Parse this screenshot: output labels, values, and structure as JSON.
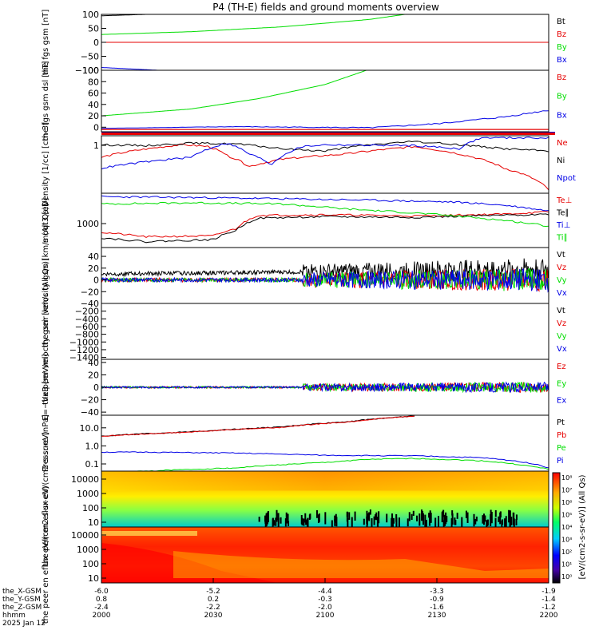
{
  "title": "P4 (TH-E) fields and ground moments overview",
  "date_label": "2025 Jan 12",
  "bottom_row_labels": [
    "the_X-GSM",
    "the_Y-GSM",
    "the_Z-GSM",
    "hhmm"
  ],
  "bottom_rows": [
    [
      "-6.0",
      "-5.2",
      "-4.4",
      "-3.3",
      "-1.9"
    ],
    [
      "0.8",
      "0.2",
      "-0.3",
      "-0.9",
      "-1.4"
    ],
    [
      "-2.4",
      "-2.2",
      "-2.0",
      "-1.6",
      "-1.2"
    ],
    [
      "2000",
      "2030",
      "2100",
      "2130",
      "2200"
    ]
  ],
  "colorbar_label": "[eV/(cm2-s-sr-eV)] (All Qs)",
  "colorbar_ticks": [
    "10⁸",
    "10⁷",
    "10⁶",
    "10⁵",
    "10⁴",
    "10³",
    "10²",
    "10¹",
    "10⁰"
  ],
  "colors": {
    "black": "#000000",
    "red": "#e60000",
    "green": "#00dd00",
    "blue": "#0000e6"
  },
  "chart_data": [
    {
      "type": "line",
      "ylabel": "the fgs gsm [nT]",
      "ylim": [
        -100,
        100
      ],
      "yticks": [
        "100",
        "50",
        "0",
        "−50",
        "−100"
      ],
      "legend": [
        {
          "name": "Bt",
          "color": "#000000"
        },
        {
          "name": "Bz",
          "color": "#e60000"
        },
        {
          "name": "By",
          "color": "#00dd00"
        },
        {
          "name": "Bx",
          "color": "#0000e6"
        }
      ],
      "series": [
        {
          "name": "Bt",
          "x": [
            0,
            0.1,
            0.15
          ],
          "y": [
            95,
            100,
            102
          ]
        },
        {
          "name": "Bz",
          "x": [
            0,
            1
          ],
          "y": [
            0,
            0
          ]
        },
        {
          "name": "By",
          "x": [
            0,
            0.2,
            0.4,
            0.6,
            0.7
          ],
          "y": [
            28,
            38,
            55,
            82,
            105
          ]
        },
        {
          "name": "Bx",
          "x": [
            0,
            0.1,
            0.18
          ],
          "y": [
            -90,
            -98,
            -104
          ]
        }
      ]
    },
    {
      "type": "line",
      "ylabel": "the fgs gsm dsl [nT]",
      "ylim": [
        -8,
        100
      ],
      "yticks": [
        "100",
        "80",
        "60",
        "40",
        "20",
        "0"
      ],
      "legend": [
        {
          "name": "Bz",
          "color": "#e60000"
        },
        {
          "name": "By",
          "color": "#00dd00"
        },
        {
          "name": "Bx",
          "color": "#0000e6"
        }
      ],
      "series": [
        {
          "name": "By",
          "x": [
            0,
            0.2,
            0.35,
            0.5,
            0.6
          ],
          "y": [
            20,
            32,
            50,
            75,
            102
          ]
        },
        {
          "name": "Bx",
          "x": [
            0,
            0.3,
            0.6,
            0.75,
            0.9,
            1
          ],
          "y": [
            -2,
            1,
            -1,
            6,
            18,
            30
          ]
        },
        {
          "name": "Bz",
          "x": [
            0,
            0.5,
            1
          ],
          "y": [
            -4,
            -4,
            -4
          ]
        }
      ]
    },
    {
      "type": "line",
      "ylabel": "Density [1/cc] [cm-3]",
      "yscale": "log",
      "yticks": [
        "1"
      ],
      "legend": [
        {
          "name": "Ne",
          "color": "#e60000"
        },
        {
          "name": "Ni",
          "color": "#000000"
        },
        {
          "name": "Npot",
          "color": "#0000e6"
        }
      ],
      "series": [
        {
          "name": "Ne",
          "x": [
            0,
            0.05,
            0.18,
            0.24,
            0.28,
            0.33,
            0.4,
            0.55,
            0.7,
            0.8,
            0.9,
            1
          ],
          "y": [
            0.4,
            0.55,
            0.9,
            0.8,
            0.45,
            0.22,
            0.35,
            0.5,
            0.8,
            0.5,
            0.2,
            0.05
          ]
        },
        {
          "name": "Ni",
          "x": [
            0,
            0.1,
            0.2,
            0.3,
            0.4,
            0.5,
            0.6,
            0.7,
            0.8,
            0.9,
            1
          ],
          "y": [
            0.9,
            0.85,
            1.0,
            0.95,
            0.7,
            0.6,
            0.9,
            1.1,
            0.9,
            0.7,
            0.6
          ]
        },
        {
          "name": "Npot",
          "x": [
            0,
            0.1,
            0.2,
            0.28,
            0.33,
            0.38,
            0.45,
            0.5,
            0.7,
            0.8,
            0.85,
            1
          ],
          "y": [
            0.2,
            0.3,
            0.4,
            1.0,
            0.5,
            0.25,
            0.8,
            0.9,
            0.85,
            0.7,
            1.4,
            1.4
          ]
        }
      ]
    },
    {
      "type": "line",
      "ylabel": "moqt3 [eV]",
      "yscale": "log",
      "yticks": [
        "1000"
      ],
      "legend": [
        {
          "name": "Te⊥",
          "color": "#e60000"
        },
        {
          "name": "Te∥",
          "color": "#000000"
        },
        {
          "name": "Ti⊥",
          "color": "#0000e6"
        },
        {
          "name": "Ti∥",
          "color": "#00dd00"
        }
      ],
      "series": [
        {
          "name": "Te⊥",
          "x": [
            0,
            0.1,
            0.25,
            0.3,
            0.35,
            0.5,
            0.7,
            0.9,
            1
          ],
          "y": [
            400,
            300,
            320,
            500,
            1200,
            1250,
            1150,
            1300,
            1500
          ]
        },
        {
          "name": "Te∥",
          "x": [
            0,
            0.1,
            0.25,
            0.3,
            0.35,
            0.5,
            0.7,
            0.9,
            1
          ],
          "y": [
            280,
            220,
            250,
            450,
            1000,
            1100,
            1050,
            1200,
            1300
          ]
        },
        {
          "name": "Ti⊥",
          "x": [
            0,
            0.2,
            0.4,
            0.6,
            0.8,
            0.9,
            1
          ],
          "y": [
            4000,
            3800,
            3500,
            3200,
            2800,
            2300,
            1600
          ]
        },
        {
          "name": "Ti∥",
          "x": [
            0,
            0.2,
            0.4,
            0.55,
            0.7,
            0.85,
            1
          ],
          "y": [
            2500,
            2700,
            2500,
            1800,
            1400,
            1000,
            600
          ]
        }
      ]
    },
    {
      "type": "line",
      "ylabel": "the peir velocity gsm [km/s (All Qs)]",
      "ylim": [
        -40,
        55
      ],
      "yticks": [
        "40",
        "20",
        "0",
        "−20",
        "−40"
      ],
      "legend": [
        {
          "name": "Vt",
          "color": "#000000"
        },
        {
          "name": "Vz",
          "color": "#e60000"
        },
        {
          "name": "Vy",
          "color": "#00dd00"
        },
        {
          "name": "Vx",
          "color": "#0000e6"
        }
      ],
      "series": [
        {
          "name": "Vt",
          "x": [
            0,
            0.5,
            1
          ],
          "y": [
            10,
            20,
            15
          ]
        },
        {
          "name": "Vz",
          "x": [
            0,
            0.5,
            1
          ],
          "y": [
            0,
            0,
            0
          ]
        },
        {
          "name": "Vy",
          "x": [
            0,
            0.5,
            1
          ],
          "y": [
            0,
            0,
            0
          ]
        },
        {
          "name": "Vx",
          "x": [
            0,
            0.5,
            1
          ],
          "y": [
            0,
            0,
            0
          ]
        }
      ]
    },
    {
      "type": "line",
      "ylabel": "the peer velocity gsm [km/s (All Qs)]",
      "ylim": [
        -1450,
        0
      ],
      "yticks": [
        "−200",
        "−400",
        "−600",
        "−800",
        "−1000",
        "−1200",
        "−1400"
      ],
      "legend": [
        {
          "name": "Vt",
          "color": "#000000"
        },
        {
          "name": "Vz",
          "color": "#e60000"
        },
        {
          "name": "Vy",
          "color": "#00dd00"
        },
        {
          "name": "Vx",
          "color": "#0000e6"
        }
      ],
      "series": []
    },
    {
      "type": "line",
      "ylabel": "E=−VxB [mV/m]",
      "ylim": [
        -45,
        45
      ],
      "yticks": [
        "40",
        "20",
        "0",
        "−20",
        "−40"
      ],
      "legend": [
        {
          "name": "Ez",
          "color": "#e60000"
        },
        {
          "name": "Ey",
          "color": "#00dd00"
        },
        {
          "name": "Ex",
          "color": "#0000e6"
        }
      ],
      "series": [
        {
          "name": "Ez",
          "x": [
            0,
            0.5,
            1
          ],
          "y": [
            0,
            0,
            0
          ]
        },
        {
          "name": "Ey",
          "x": [
            0,
            0.5,
            1
          ],
          "y": [
            0,
            0,
            0
          ]
        },
        {
          "name": "Ex",
          "x": [
            0,
            0.5,
            1
          ],
          "y": [
            0,
            0,
            0
          ]
        }
      ]
    },
    {
      "type": "line",
      "ylabel": "Pressure [nPa]",
      "yscale": "log",
      "yticks": [
        "10.0",
        "1.0",
        "0.1"
      ],
      "legend": [
        {
          "name": "Pt",
          "color": "#000000"
        },
        {
          "name": "Pb",
          "color": "#e60000"
        },
        {
          "name": "Pe",
          "color": "#00dd00"
        },
        {
          "name": "Pi",
          "color": "#0000e6"
        }
      ],
      "series": [
        {
          "name": "Pt",
          "x": [
            0,
            0.2,
            0.4,
            0.55,
            0.7
          ],
          "y": [
            3.5,
            6,
            11,
            22,
            45
          ]
        },
        {
          "name": "Pb",
          "x": [
            0,
            0.2,
            0.4,
            0.55,
            0.7
          ],
          "y": [
            3.4,
            5.8,
            10.5,
            21,
            44
          ]
        },
        {
          "name": "Pi",
          "x": [
            0,
            0.1,
            0.3,
            0.5,
            0.7,
            0.85,
            0.95,
            1
          ],
          "y": [
            0.45,
            0.45,
            0.4,
            0.3,
            0.28,
            0.22,
            0.12,
            0.06
          ]
        },
        {
          "name": "Pe",
          "x": [
            0,
            0.1,
            0.3,
            0.5,
            0.6,
            0.7,
            0.85,
            0.95,
            1
          ],
          "y": [
            0.03,
            0.04,
            0.06,
            0.12,
            0.18,
            0.2,
            0.15,
            0.08,
            0.05
          ]
        }
      ]
    },
    {
      "type": "heatmap",
      "ylabel": "the peir en eflux eV/(cm2-s-sr-eV)",
      "yscale": "log",
      "yticks": [
        "10000",
        "1000",
        "100",
        "10"
      ]
    },
    {
      "type": "heatmap",
      "ylabel": "the peer en eflux eV/(cm2-s-sr-eV)",
      "yscale": "log",
      "yticks": [
        "10000",
        "1000",
        "100",
        "10"
      ]
    }
  ]
}
